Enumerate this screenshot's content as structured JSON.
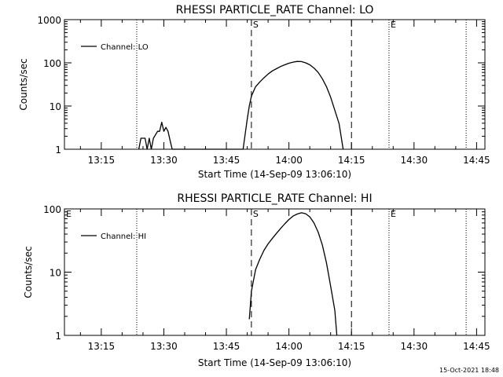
{
  "footer": {
    "timestamp": "15-Oct-2021 18:48"
  },
  "chart_data": [
    {
      "type": "line",
      "title": "RHESSI PARTICLE_RATE Channel: LO",
      "xlabel": "Start Time (14-Sep-09 13:06:10)",
      "ylabel": "Counts/sec",
      "yscale": "log",
      "xlim": [
        "13:06:10",
        "14:47:00"
      ],
      "ylim": [
        1,
        1000
      ],
      "x_ticks": [
        "13:15",
        "13:30",
        "13:45",
        "14:00",
        "14:15",
        "14:30",
        "14:45"
      ],
      "y_ticks": [
        "1",
        "10",
        "100",
        "1000"
      ],
      "legend": {
        "placement": "top-left",
        "entries": [
          "Channel: LO"
        ]
      },
      "markers": [
        {
          "time": "13:23:30",
          "style": "dotted",
          "label": ""
        },
        {
          "time": "13:51:00",
          "style": "dashed",
          "label": "S"
        },
        {
          "time": "14:15:00",
          "style": "dashed",
          "label": ""
        },
        {
          "time": "14:24:00",
          "style": "dotted",
          "label": "E"
        },
        {
          "time": "14:42:30",
          "style": "dotted",
          "label": ""
        }
      ],
      "series": [
        {
          "color": "#000000",
          "points": [
            [
              "13:24:00",
              1
            ],
            [
              "13:24:30",
              1.8
            ],
            [
              "13:25:30",
              1.8
            ],
            [
              "13:26:00",
              1
            ],
            [
              "13:26:30",
              1.8
            ],
            [
              "13:27:00",
              1
            ],
            [
              "13:27:30",
              1.8
            ],
            [
              "13:28:30",
              2.6
            ],
            [
              "13:29:00",
              2.6
            ],
            [
              "13:29:30",
              4.2
            ],
            [
              "13:30:00",
              2.6
            ],
            [
              "13:30:30",
              3.2
            ],
            [
              "13:31:00",
              2.6
            ],
            [
              "13:31:30",
              1.6
            ],
            [
              "13:32:00",
              1
            ],
            [
              "13:49:00",
              1
            ],
            [
              "13:49:30",
              2.2
            ],
            [
              "13:50:00",
              5
            ],
            [
              "13:50:30",
              10
            ],
            [
              "13:51:00",
              17
            ],
            [
              "13:52:00",
              28
            ],
            [
              "13:53:00",
              36
            ],
            [
              "13:54:00",
              45
            ],
            [
              "13:55:00",
              55
            ],
            [
              "13:56:00",
              65
            ],
            [
              "13:57:00",
              73
            ],
            [
              "13:58:00",
              82
            ],
            [
              "13:59:00",
              90
            ],
            [
              "14:00:00",
              98
            ],
            [
              "14:01:00",
              104
            ],
            [
              "14:02:00",
              108
            ],
            [
              "14:03:00",
              107
            ],
            [
              "14:04:00",
              100
            ],
            [
              "14:05:00",
              90
            ],
            [
              "14:06:00",
              76
            ],
            [
              "14:07:00",
              60
            ],
            [
              "14:08:00",
              43
            ],
            [
              "14:09:00",
              28
            ],
            [
              "14:10:00",
              16
            ],
            [
              "14:11:00",
              8
            ],
            [
              "14:12:00",
              4
            ],
            [
              "14:12:30",
              2
            ],
            [
              "14:13:00",
              1
            ]
          ]
        }
      ]
    },
    {
      "type": "line",
      "title": "RHESSI PARTICLE_RATE Channel: HI",
      "xlabel": "Start Time (14-Sep-09 13:06:10)",
      "ylabel": "Counts/sec",
      "yscale": "log",
      "xlim": [
        "13:06:10",
        "14:47:00"
      ],
      "ylim": [
        1,
        100
      ],
      "x_ticks": [
        "13:15",
        "13:30",
        "13:45",
        "14:00",
        "14:15",
        "14:30",
        "14:45"
      ],
      "y_ticks": [
        "1",
        "10",
        "100"
      ],
      "legend": {
        "placement": "top-left",
        "entries": [
          "Channel: HI"
        ]
      },
      "markers": [
        {
          "time": "13:06:10",
          "style": "none",
          "label": "E"
        },
        {
          "time": "13:23:30",
          "style": "dotted",
          "label": ""
        },
        {
          "time": "13:51:00",
          "style": "dashed",
          "label": "S"
        },
        {
          "time": "14:15:00",
          "style": "dashed",
          "label": ""
        },
        {
          "time": "14:24:00",
          "style": "dotted",
          "label": "E"
        },
        {
          "time": "14:42:30",
          "style": "dotted",
          "label": ""
        }
      ],
      "series": [
        {
          "color": "#000000",
          "points": [
            [
              "13:50:30",
              1.8
            ],
            [
              "13:51:00",
              5
            ],
            [
              "13:52:00",
              11
            ],
            [
              "13:53:00",
              16
            ],
            [
              "13:54:00",
              22
            ],
            [
              "13:55:00",
              28
            ],
            [
              "13:56:00",
              34
            ],
            [
              "13:57:00",
              41
            ],
            [
              "13:58:00",
              49
            ],
            [
              "13:59:00",
              58
            ],
            [
              "14:00:00",
              68
            ],
            [
              "14:01:00",
              77
            ],
            [
              "14:02:00",
              83
            ],
            [
              "14:03:00",
              87
            ],
            [
              "14:04:00",
              84
            ],
            [
              "14:05:00",
              75
            ],
            [
              "14:06:00",
              60
            ],
            [
              "14:07:00",
              43
            ],
            [
              "14:08:00",
              27
            ],
            [
              "14:09:00",
              14
            ],
            [
              "14:10:00",
              6
            ],
            [
              "14:11:00",
              2.5
            ],
            [
              "14:11:30",
              1
            ]
          ]
        }
      ]
    }
  ]
}
